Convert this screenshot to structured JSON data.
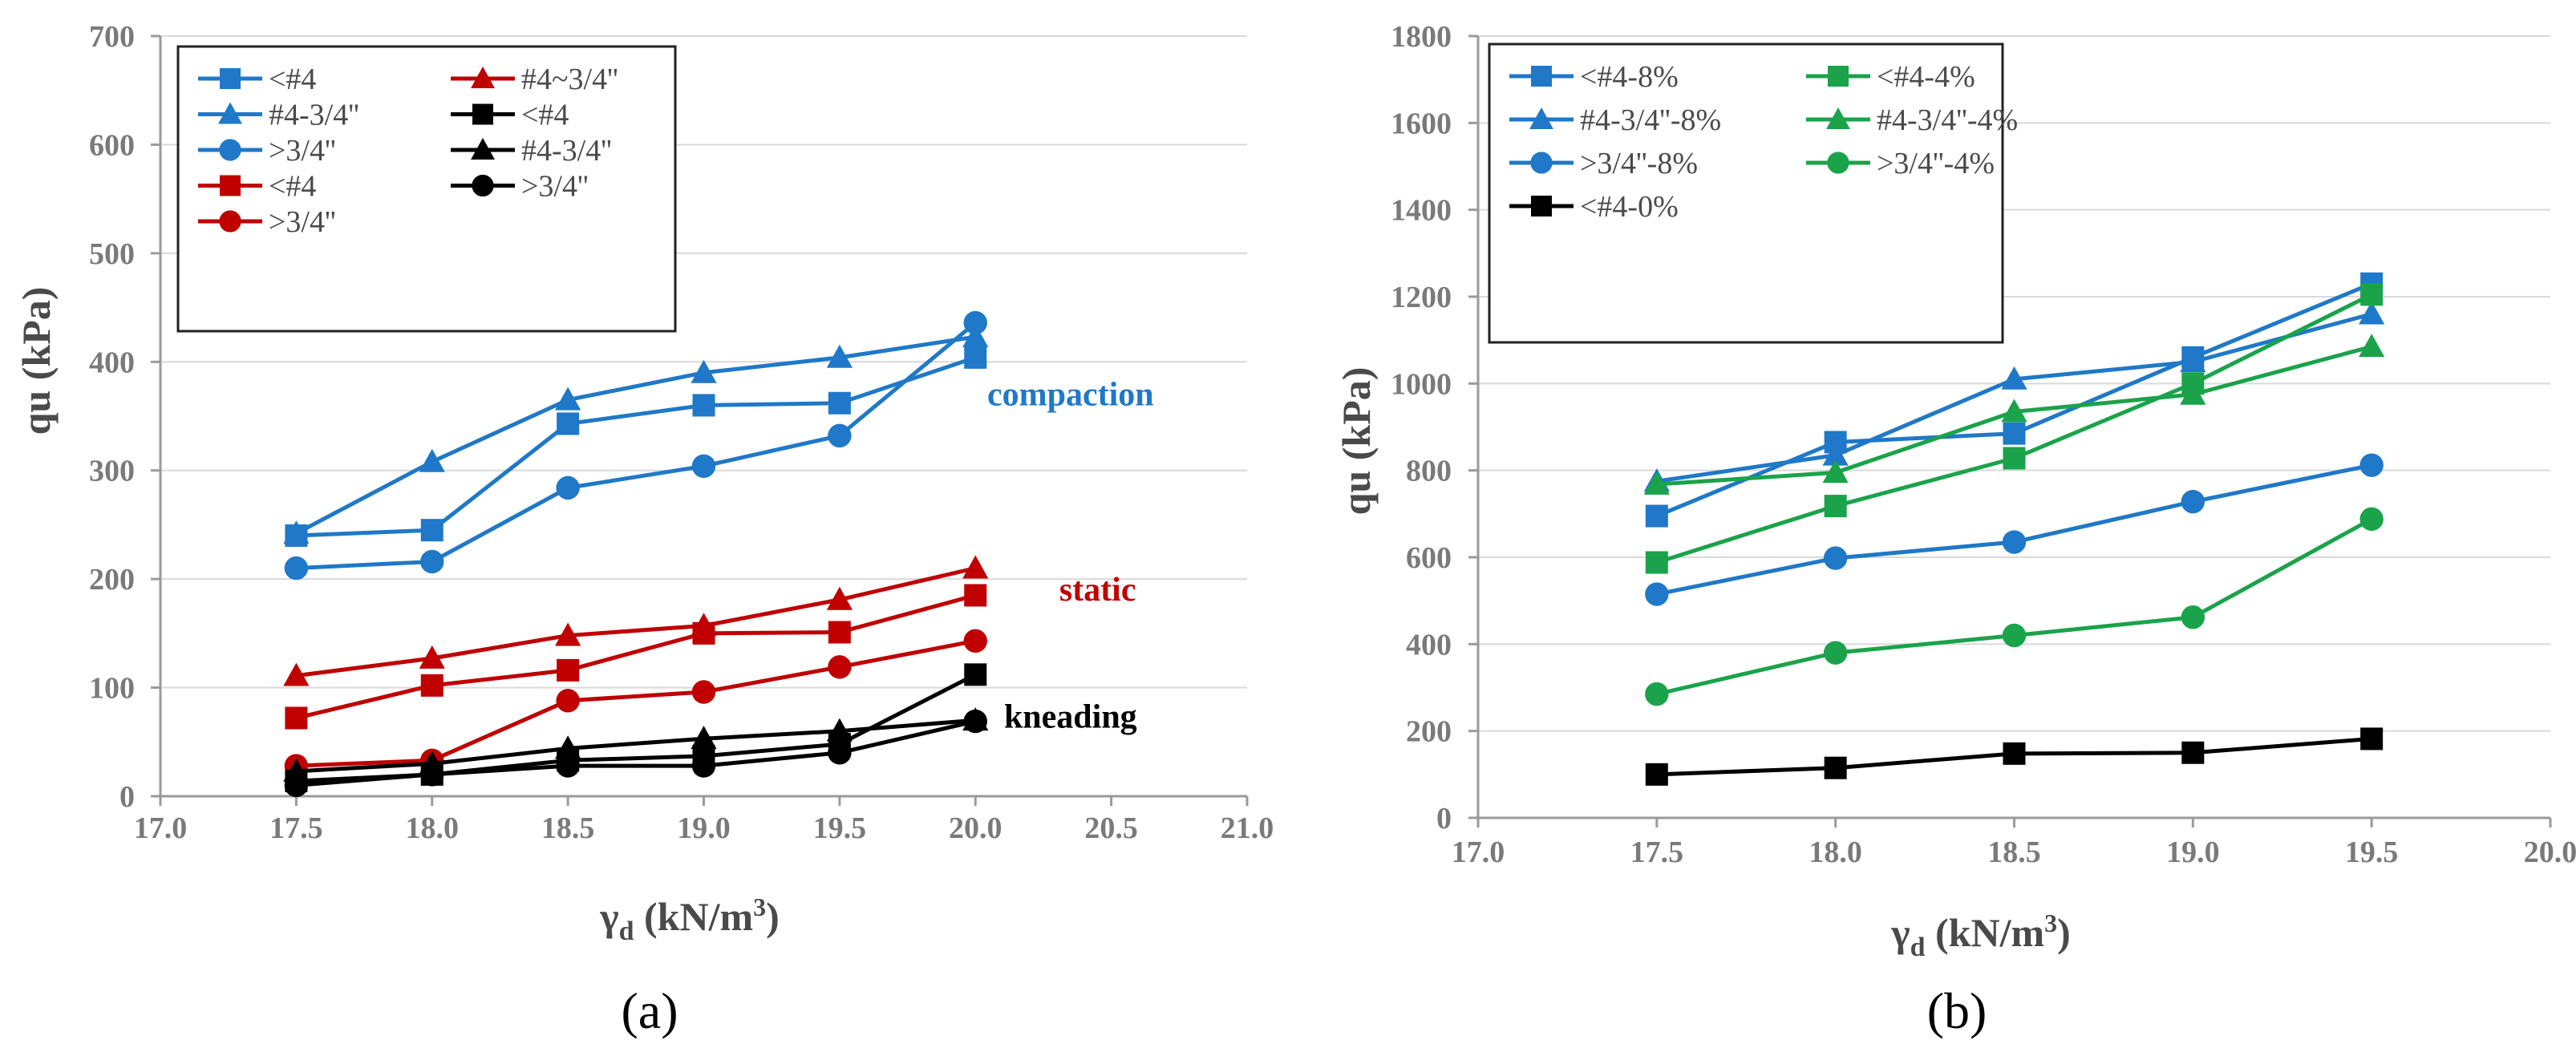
{
  "chart_data": [
    {
      "type": "line",
      "panel_label": "a",
      "panel_label_wrapped": "(a)",
      "xlabel": "γd (kN/m³)",
      "xlabel_main": "γ",
      "xlabel_sub": "d",
      "xlabel_unit": "(kN/m",
      "xlabel_sup": "3",
      "xlabel_close": ")",
      "ylabel": "qu (kPa)",
      "xlim": [
        17.0,
        21.0
      ],
      "ylim": [
        0,
        700
      ],
      "xticks": [
        "17.0",
        "17.5",
        "18.0",
        "18.5",
        "19.0",
        "19.5",
        "20.0",
        "20.5",
        "21.0"
      ],
      "yticks": [
        "0",
        "100",
        "200",
        "300",
        "400",
        "500",
        "600",
        "700"
      ],
      "grid": "horizontal",
      "legend_location": "top-left",
      "legend_columns": 2,
      "annotations": [
        {
          "text": "compaction",
          "color": "#1f78c8",
          "x": 20.35,
          "y": 360
        },
        {
          "text": "static",
          "color": "#c00000",
          "x": 20.45,
          "y": 180
        },
        {
          "text": "kneading",
          "color": "#000000",
          "x": 20.35,
          "y": 63
        }
      ],
      "series": [
        {
          "name": "<#4",
          "group": "compaction",
          "color": "#1f78c8",
          "marker": "square",
          "x": [
            17.5,
            18.0,
            18.5,
            19.0,
            19.5,
            20.0
          ],
          "values": [
            240,
            245,
            343,
            360,
            362,
            404
          ]
        },
        {
          "name": "#4-3/4''",
          "group": "compaction",
          "color": "#1f78c8",
          "marker": "triangle",
          "x": [
            17.5,
            18.0,
            18.5,
            19.0,
            19.5,
            20.0
          ],
          "values": [
            242,
            308,
            365,
            390,
            404,
            423
          ]
        },
        {
          "name": ">3/4''",
          "group": "compaction",
          "color": "#1f78c8",
          "marker": "circle",
          "x": [
            17.5,
            18.0,
            18.5,
            19.0,
            19.5,
            20.0
          ],
          "values": [
            210,
            216,
            284,
            304,
            332,
            436
          ]
        },
        {
          "name": "<#4",
          "group": "static",
          "color": "#c00000",
          "marker": "square",
          "x": [
            17.5,
            18.0,
            18.5,
            19.0,
            19.5,
            20.0
          ],
          "values": [
            72,
            102,
            116,
            150,
            151,
            185
          ]
        },
        {
          "name": "#4~3/4''",
          "group": "static",
          "color": "#c00000",
          "marker": "triangle",
          "x": [
            17.5,
            18.0,
            18.5,
            19.0,
            19.5,
            20.0
          ],
          "values": [
            111,
            127,
            148,
            157,
            181,
            210
          ]
        },
        {
          "name": ">3/4''",
          "group": "static",
          "color": "#c00000",
          "marker": "circle",
          "x": [
            17.5,
            18.0,
            18.5,
            19.0,
            19.5,
            20.0
          ],
          "values": [
            28,
            33,
            88,
            96,
            119,
            143
          ]
        },
        {
          "name": "<#4",
          "group": "kneading",
          "color": "#000000",
          "marker": "square",
          "x": [
            17.5,
            18.0,
            18.5,
            19.0,
            19.5,
            20.0
          ],
          "values": [
            14,
            20,
            33,
            37,
            48,
            112
          ]
        },
        {
          "name": "#4-3/4''",
          "group": "kneading",
          "color": "#000000",
          "marker": "triangle",
          "x": [
            17.5,
            18.0,
            18.5,
            19.0,
            19.5,
            20.0
          ],
          "values": [
            23,
            30,
            44,
            53,
            60,
            70
          ]
        },
        {
          "name": ">3/4''",
          "group": "kneading",
          "color": "#000000",
          "marker": "circle",
          "x": [
            17.5,
            18.0,
            18.5,
            19.0,
            19.5,
            20.0
          ],
          "values": [
            10,
            20,
            28,
            28,
            40,
            69
          ]
        }
      ],
      "legend_order": [
        0,
        4,
        1,
        6,
        2,
        7,
        3,
        8,
        5
      ]
    },
    {
      "type": "line",
      "panel_label": "b",
      "panel_label_wrapped": "(b)",
      "xlabel": "γd (kN/m³)",
      "xlabel_main": "γ",
      "xlabel_sub": "d",
      "xlabel_unit": "(kN/m",
      "xlabel_sup": "3",
      "xlabel_close": ")",
      "ylabel": "qu (kPa)",
      "xlim": [
        17.0,
        20.0
      ],
      "ylim": [
        0,
        1800
      ],
      "xticks": [
        "17.0",
        "17.5",
        "18.0",
        "18.5",
        "19.0",
        "19.5",
        "20.0"
      ],
      "yticks": [
        "0",
        "200",
        "400",
        "600",
        "800",
        "1000",
        "1200",
        "1400",
        "1600",
        "1800"
      ],
      "grid": "horizontal",
      "legend_location": "top-left",
      "legend_columns": 2,
      "annotations": [],
      "series": [
        {
          "name": "<#4-8%",
          "color": "#1f78c8",
          "marker": "square",
          "x": [
            17.5,
            18.0,
            18.5,
            19.0,
            19.5
          ],
          "values": [
            695,
            865,
            885,
            1060,
            1230
          ]
        },
        {
          "name": "#4-3/4''-8%",
          "color": "#1f78c8",
          "marker": "triangle",
          "x": [
            17.5,
            18.0,
            18.5,
            19.0,
            19.5
          ],
          "values": [
            775,
            835,
            1010,
            1050,
            1160
          ]
        },
        {
          "name": ">3/4''-8%",
          "color": "#1f78c8",
          "marker": "circle",
          "x": [
            17.5,
            18.0,
            18.5,
            19.0,
            19.5
          ],
          "values": [
            515,
            598,
            635,
            728,
            812
          ]
        },
        {
          "name": "<#4-4%",
          "color": "#1aa34a",
          "marker": "square",
          "x": [
            17.5,
            18.0,
            18.5,
            19.0,
            19.5
          ],
          "values": [
            588,
            718,
            828,
            1000,
            1205
          ]
        },
        {
          "name": "#4-3/4''-4%",
          "color": "#1aa34a",
          "marker": "triangle",
          "x": [
            17.5,
            18.0,
            18.5,
            19.0,
            19.5
          ],
          "values": [
            768,
            795,
            935,
            975,
            1085
          ]
        },
        {
          "name": ">3/4''-4%",
          "color": "#1aa34a",
          "marker": "circle",
          "x": [
            17.5,
            18.0,
            18.5,
            19.0,
            19.5
          ],
          "values": [
            285,
            380,
            420,
            462,
            688
          ]
        },
        {
          "name": "<#4-0%",
          "color": "#000000",
          "marker": "square",
          "x": [
            17.5,
            18.0,
            18.5,
            19.0,
            19.5
          ],
          "values": [
            100,
            115,
            148,
            150,
            182
          ]
        }
      ],
      "legend_order": [
        0,
        3,
        1,
        4,
        2,
        5,
        6
      ]
    }
  ]
}
